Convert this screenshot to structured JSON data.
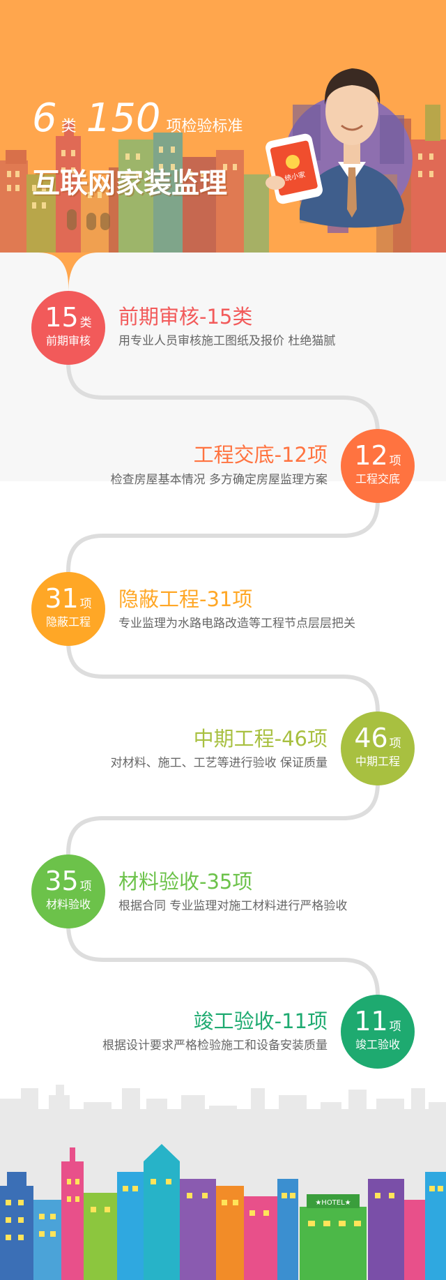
{
  "hero": {
    "count_categories": "6",
    "unit_categories": "类",
    "count_items": "150",
    "unit_items": "项检验标准",
    "title": "互联网家装监理",
    "phone_brand": "统小家"
  },
  "colors": {
    "hero_bg": "#FFA64D",
    "panel_bg": "#F7F7F7",
    "path_line": "#DDDDDD",
    "s1": "#F25A5A",
    "s2": "#FF7340",
    "s3": "#FFA726",
    "s4": "#A8C040",
    "s5": "#6CC24A",
    "s6": "#1EAA70"
  },
  "steps": [
    {
      "number": "15",
      "unit": "类",
      "badge_label": "前期审核",
      "title": "前期审核-15类",
      "desc": "用专业人员审核施工图纸及报价 杜绝猫腻"
    },
    {
      "number": "12",
      "unit": "项",
      "badge_label": "工程交底",
      "title": "工程交底-12项",
      "desc": "检查房屋基本情况 多方确定房屋监理方案"
    },
    {
      "number": "31",
      "unit": "项",
      "badge_label": "隐蔽工程",
      "title": "隐蔽工程-31项",
      "desc": "专业监理为水路电路改造等工程节点层层把关"
    },
    {
      "number": "46",
      "unit": "项",
      "badge_label": "中期工程",
      "title": "中期工程-46项",
      "desc": "对材料、施工、工艺等进行验收 保证质量"
    },
    {
      "number": "35",
      "unit": "项",
      "badge_label": "材料验收",
      "title": "材料验收-35项",
      "desc": "根据合同 专业监理对施工材料进行严格验收"
    },
    {
      "number": "11",
      "unit": "项",
      "badge_label": "竣工验收",
      "title": "竣工验收-11项",
      "desc": "根据设计要求严格检验施工和设备安装质量"
    }
  ],
  "footer": {
    "hotel_sign": "★HOTEL★"
  }
}
